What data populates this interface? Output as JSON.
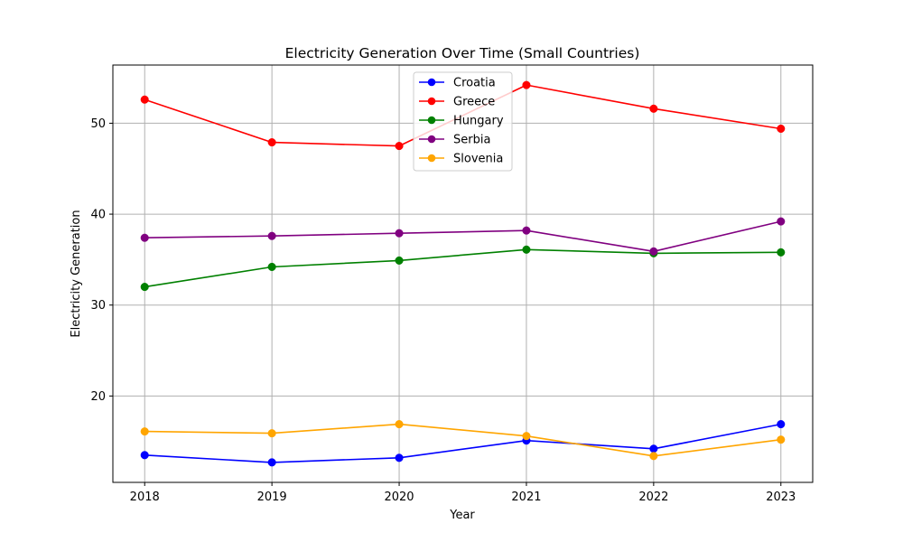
{
  "chart_data": {
    "type": "line",
    "title": "Electricity Generation Over Time (Small Countries)",
    "xlabel": "Year",
    "ylabel": "Electricity Generation",
    "x": [
      2018,
      2019,
      2020,
      2021,
      2022,
      2023
    ],
    "xticks": [
      "2018",
      "2019",
      "2020",
      "2021",
      "2022",
      "2023"
    ],
    "yticks": [
      20,
      30,
      40,
      50
    ],
    "xlim": [
      2017.75,
      2023.25
    ],
    "ylim": [
      10.5,
      56.4
    ],
    "grid": true,
    "legend_position": "upper center",
    "series": [
      {
        "name": "Croatia",
        "color": "#0000ff",
        "values": [
          13.5,
          12.7,
          13.2,
          15.1,
          14.2,
          16.9
        ]
      },
      {
        "name": "Greece",
        "color": "#ff0000",
        "values": [
          52.6,
          47.9,
          47.5,
          54.2,
          51.6,
          49.4
        ]
      },
      {
        "name": "Hungary",
        "color": "#008000",
        "values": [
          32.0,
          34.2,
          34.9,
          36.1,
          35.7,
          35.8
        ]
      },
      {
        "name": "Serbia",
        "color": "#800080",
        "values": [
          37.4,
          37.6,
          37.9,
          38.2,
          35.9,
          39.2
        ]
      },
      {
        "name": "Slovenia",
        "color": "#ffa500",
        "values": [
          16.1,
          15.9,
          16.9,
          15.6,
          13.4,
          15.2
        ]
      }
    ]
  }
}
